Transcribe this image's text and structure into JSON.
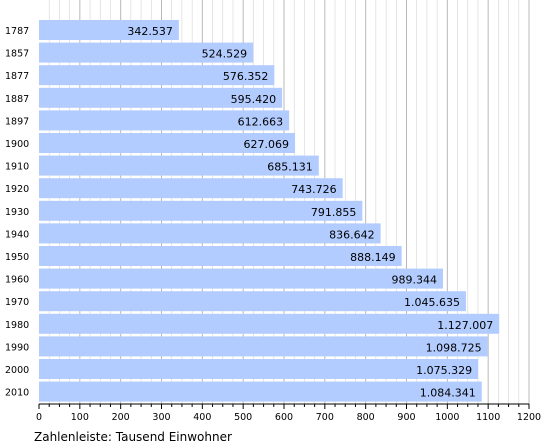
{
  "chart_data": {
    "type": "bar",
    "orientation": "horizontal",
    "categories": [
      "1787",
      "1857",
      "1877",
      "1887",
      "1897",
      "1900",
      "1910",
      "1920",
      "1930",
      "1940",
      "1950",
      "1960",
      "1970",
      "1980",
      "1990",
      "2000",
      "2010"
    ],
    "values": [
      342.537,
      524.529,
      576.352,
      595.42,
      612.663,
      627.069,
      685.131,
      743.726,
      791.855,
      836.642,
      888.149,
      989.344,
      1045.635,
      1127.007,
      1098.725,
      1075.329,
      1084.341
    ],
    "value_labels": [
      "342.537",
      "524.529",
      "576.352",
      "595.420",
      "612.663",
      "627.069",
      "685.131",
      "743.726",
      "791.855",
      "836.642",
      "888.149",
      "989.344",
      "1.045.635",
      "1.127.007",
      "1.098.725",
      "1.075.329",
      "1.084.341"
    ],
    "xlim": [
      0,
      1200
    ],
    "x_ticks": [
      "0",
      "100",
      "200",
      "300",
      "400",
      "500",
      "600",
      "700",
      "800",
      "900",
      "1000",
      "1100",
      "1200"
    ],
    "xlabel": "Zahlenleiste: Tausend Einwohner",
    "grid": true,
    "colors": {
      "bar": "#b3ccff",
      "grid": "#b0b0b0",
      "axis": "#000000"
    }
  }
}
